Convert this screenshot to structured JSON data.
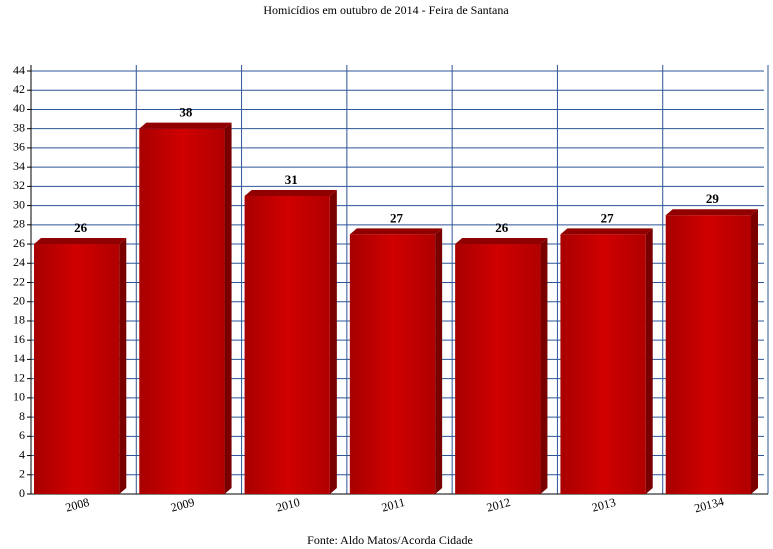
{
  "chart_data": {
    "type": "bar",
    "title": "Homicídios em outubro de 2014 - Feira de Santana",
    "source": "Fonte: Aldo Matos/Acorda Cidade",
    "categories": [
      "2008",
      "2009",
      "2010",
      "2011",
      "2012",
      "2013",
      "20134"
    ],
    "values": [
      26,
      38,
      31,
      27,
      26,
      27,
      29
    ],
    "color": "#c00000",
    "ylim": [
      0,
      44
    ],
    "yticks": [
      0,
      2,
      4,
      6,
      8,
      10,
      12,
      14,
      16,
      18,
      20,
      22,
      24,
      26,
      28,
      30,
      32,
      34,
      36,
      38,
      40,
      42,
      44
    ],
    "grid": true
  }
}
